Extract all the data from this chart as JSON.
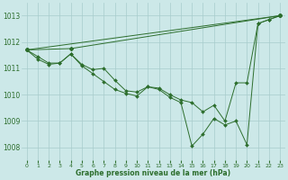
{
  "line1": {
    "x": [
      0,
      1,
      2,
      3,
      4,
      5,
      6,
      7,
      8,
      9,
      10,
      11,
      12,
      13,
      14,
      15,
      16,
      17,
      18,
      19,
      20,
      21,
      22,
      23
    ],
    "y": [
      1011.7,
      1011.45,
      1011.2,
      1011.2,
      1011.55,
      1011.15,
      1010.95,
      1011.0,
      1010.55,
      1010.15,
      1010.1,
      1010.3,
      1010.25,
      1010.0,
      1009.8,
      1009.7,
      1009.35,
      1009.6,
      1009.0,
      1010.45,
      1010.45,
      1012.7,
      1012.85,
      1013.0
    ]
  },
  "line2": {
    "x": [
      0,
      1,
      2,
      3,
      4,
      5,
      6,
      7,
      8,
      9,
      10,
      11,
      12,
      13,
      14,
      15,
      16,
      17,
      18,
      19,
      20,
      21,
      22,
      23
    ],
    "y": [
      1011.7,
      1011.35,
      1011.15,
      1011.2,
      1011.55,
      1011.1,
      1010.8,
      1010.5,
      1010.2,
      1010.05,
      1009.95,
      1010.3,
      1010.2,
      1009.9,
      1009.7,
      1008.05,
      1008.5,
      1009.1,
      1008.85,
      1009.0,
      1008.1,
      1012.7,
      1012.85,
      1013.0
    ]
  },
  "line3": {
    "x": [
      0,
      23
    ],
    "y": [
      1011.7,
      1013.0
    ]
  },
  "line4": {
    "x": [
      0,
      4,
      23
    ],
    "y": [
      1011.7,
      1011.75,
      1013.0
    ]
  },
  "color": "#2d6e2d",
  "bg_color": "#cce8e8",
  "grid_color": "#a8cccc",
  "xlabel": "Graphe pression niveau de la mer (hPa)",
  "ylim": [
    1007.5,
    1013.5
  ],
  "xlim": [
    -0.5,
    23.5
  ],
  "yticks": [
    1008,
    1009,
    1010,
    1011,
    1012,
    1013
  ],
  "xticks": [
    0,
    1,
    2,
    3,
    4,
    5,
    6,
    7,
    8,
    9,
    10,
    11,
    12,
    13,
    14,
    15,
    16,
    17,
    18,
    19,
    20,
    21,
    22,
    23
  ]
}
